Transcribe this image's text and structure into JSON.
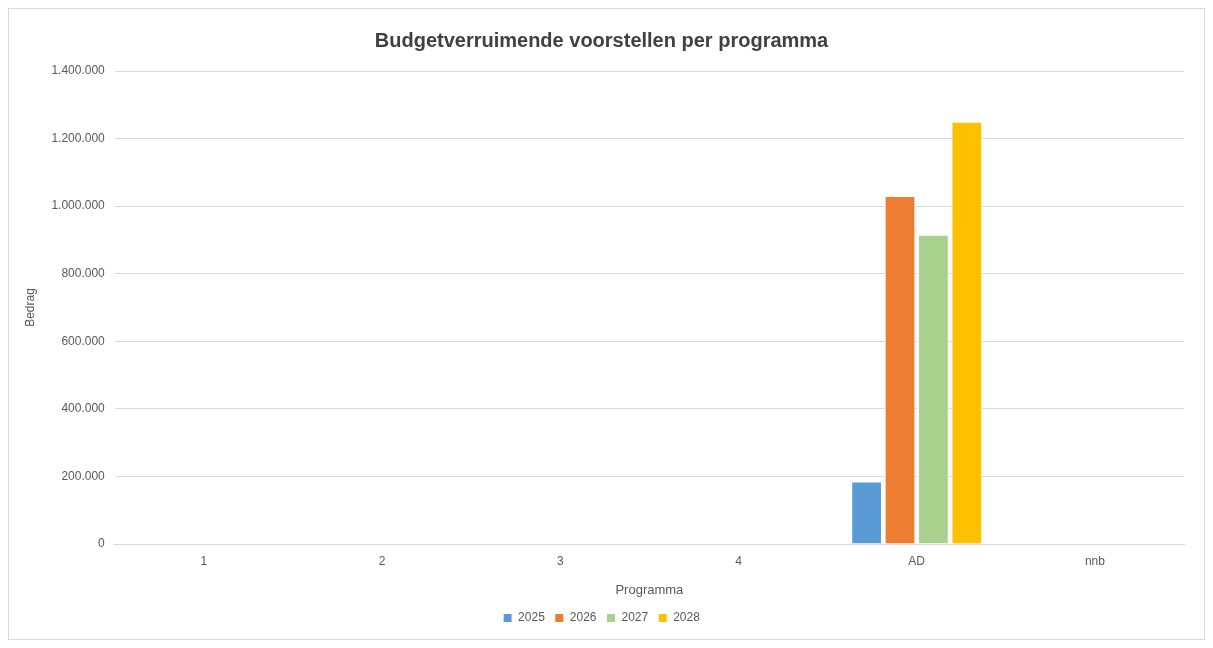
{
  "chart_data": {
    "type": "bar",
    "title": "Budgetverruimende voorstellen per programma",
    "xlabel": "Programma",
    "ylabel": "Bedrag",
    "categories": [
      "1",
      "2",
      "3",
      "4",
      "AD",
      "nnb"
    ],
    "series": [
      {
        "name": "2025",
        "color": "#5b9bd5",
        "values": [
          0,
          0,
          0,
          0,
          185000,
          0
        ]
      },
      {
        "name": "2026",
        "color": "#ed7d31",
        "values": [
          0,
          0,
          0,
          0,
          1030000,
          0
        ]
      },
      {
        "name": "2027",
        "color": "#a9d18e",
        "values": [
          0,
          0,
          0,
          0,
          915000,
          0
        ]
      },
      {
        "name": "2028",
        "color": "#ffc000",
        "values": [
          0,
          0,
          0,
          0,
          1250000,
          0
        ]
      }
    ],
    "ylim": [
      0,
      1400000
    ],
    "yticks": [
      {
        "value": 0,
        "label": "0"
      },
      {
        "value": 200000,
        "label": "200.000"
      },
      {
        "value": 400000,
        "label": "400.000"
      },
      {
        "value": 600000,
        "label": "600.000"
      },
      {
        "value": 800000,
        "label": "800.000"
      },
      {
        "value": 1000000,
        "label": "1.000.000"
      },
      {
        "value": 1200000,
        "label": "1.200.000"
      },
      {
        "value": 1400000,
        "label": "1.400.000"
      }
    ],
    "grid": "y",
    "legend": "bottom"
  }
}
